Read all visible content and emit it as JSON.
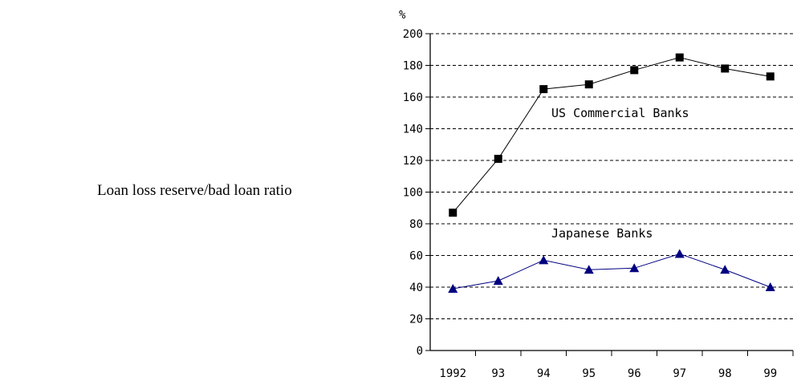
{
  "side_label": "Loan loss reserve/bad loan ratio",
  "chart_data": {
    "type": "line",
    "unit": "%",
    "categories": [
      "1992",
      "93",
      "94",
      "95",
      "96",
      "97",
      "98",
      "99"
    ],
    "ylim": [
      0,
      200
    ],
    "yticks": [
      0,
      20,
      40,
      60,
      80,
      100,
      120,
      140,
      160,
      180,
      200
    ],
    "grid": true,
    "series": [
      {
        "name": "US Commercial Banks",
        "values": [
          87,
          121,
          165,
          168,
          177,
          185,
          178,
          173
        ],
        "color": "#000000",
        "marker": "square"
      },
      {
        "name": "Japanese Banks",
        "values": [
          39,
          44,
          57,
          51,
          52,
          61,
          51,
          40
        ],
        "color": "#000080",
        "marker": "triangle"
      }
    ]
  }
}
